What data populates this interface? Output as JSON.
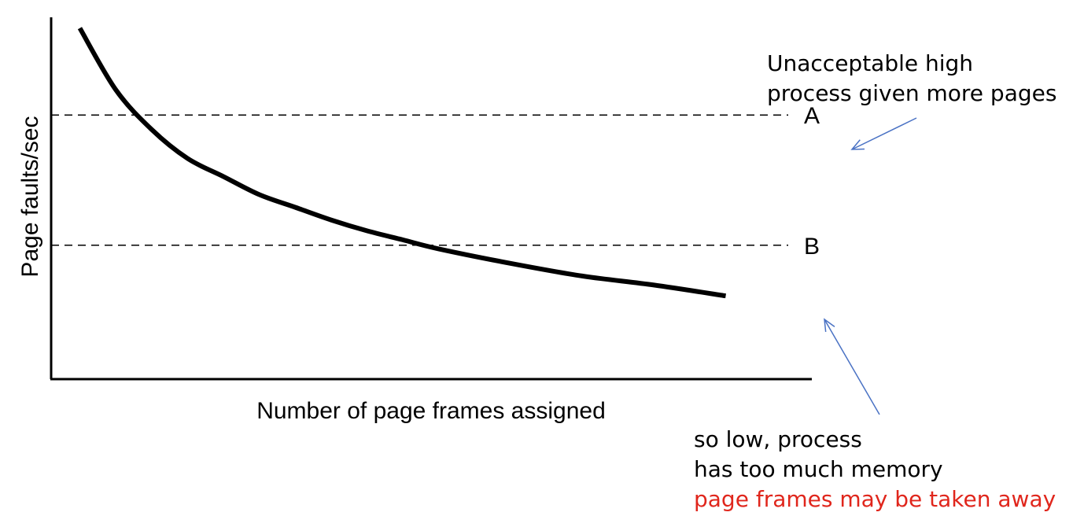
{
  "chart_data": {
    "type": "line",
    "title": "",
    "xlabel": "Number of page frames assigned",
    "ylabel": "Page faults/sec",
    "x_ticks": false,
    "y_ticks": false,
    "grid": false,
    "series": [
      {
        "x": [
          1.0,
          1.5,
          2.0,
          2.5,
          3.0,
          3.5,
          4.0,
          4.5,
          5.0,
          5.5,
          6.0,
          7.0,
          8.0,
          9.0,
          10.0
        ],
        "y": [
          97,
          80,
          69,
          61,
          56,
          51,
          47.5,
          44,
          41,
          38.5,
          36,
          32,
          28.5,
          26,
          23
        ]
      }
    ],
    "thresholds": [
      {
        "label": "A",
        "y": 73
      },
      {
        "label": "B",
        "y": 37
      }
    ],
    "xlim": [
      0.6,
      11.2
    ],
    "ylim": [
      0,
      100
    ]
  },
  "annotations": {
    "top_lines": [
      "Unacceptable high",
      "process given more pages"
    ],
    "bottom_lines": [
      "so low, process",
      "has too much memory"
    ],
    "bottom_highlight": "page frames may be taken away",
    "arrow_color": "#4a72c4",
    "highlight_color": "#e0261c"
  }
}
